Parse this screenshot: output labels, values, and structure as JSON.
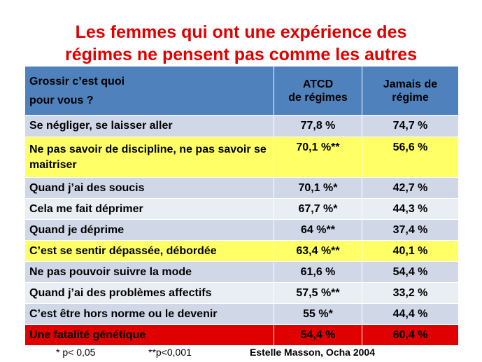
{
  "title": {
    "line1": "Les femmes qui ont une expérience des",
    "line2": "régimes ne pensent pas comme les autres"
  },
  "table": {
    "header": {
      "question_line1": "Grossir c’est quoi",
      "question_line2": "pour vous ?",
      "col1_line1": "ATCD",
      "col1_line2": "de régimes",
      "col2_line1": "Jamais de",
      "col2_line2": "régime"
    },
    "rows": [
      {
        "label": "Se négliger, se laisser aller",
        "atcd": "77,8 %",
        "jamais": "74,7 %"
      },
      {
        "label": "Ne pas savoir de discipline, ne pas savoir se maitriser",
        "atcd": "70,1 %**",
        "jamais": "56,6 %"
      },
      {
        "label": "Quand j’ai des soucis",
        "atcd": "70,1 %*",
        "jamais": "42,7 %"
      },
      {
        "label": "Cela me fait déprimer",
        "atcd": "67,7 %*",
        "jamais": "44,3 %"
      },
      {
        "label": "Quand je déprime",
        "atcd": "64 %**",
        "jamais": "37,4 %"
      },
      {
        "label": "C’est se sentir dépassée, débordée",
        "atcd": "63,4 %**",
        "jamais": "40,1 %"
      },
      {
        "label": "Ne pas pouvoir suivre la mode",
        "atcd": "61,6 %",
        "jamais": "54,4 %"
      },
      {
        "label": "Quand j’ai des problèmes affectifs",
        "atcd": "57,5 %**",
        "jamais": "33,2 %"
      },
      {
        "label": "C’est être hors norme ou le devenir",
        "atcd": "55 %*",
        "jamais": "44,4 %"
      },
      {
        "label": "Une fatalité génétique",
        "atcd": "54,4 %",
        "jamais": "60,4 %"
      }
    ]
  },
  "footer": {
    "note1": "* p< 0,05",
    "note2": "**p<0,001",
    "source": "Estelle Masson, Ocha 2004"
  },
  "colors": {
    "title": "#e00000",
    "header_bg": "#4f81bd",
    "row_dark": "#d0d8e8",
    "row_light": "#e9edf4",
    "highlight_yellow": "#ffff66",
    "highlight_red": "#e00000"
  }
}
